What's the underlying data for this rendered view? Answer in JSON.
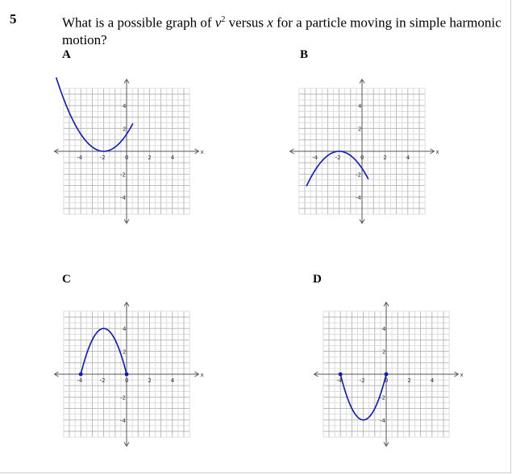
{
  "question": {
    "number": "5",
    "text_before": "What is a possible graph of ",
    "var_v": "v",
    "exponent": "2",
    "text_middle": " versus ",
    "var_x": "x",
    "text_after": " for a particle moving in simple harmonic motion?"
  },
  "options": [
    {
      "label": "A",
      "shape": "upward parabola",
      "vertex": [
        -2,
        0
      ],
      "passes_through": [
        0,
        1.5
      ],
      "endpoints": "none"
    },
    {
      "label": "B",
      "shape": "downward parabola",
      "vertex": [
        -2,
        0
      ],
      "passes_through": [
        0,
        -1.5
      ],
      "endpoints": "none"
    },
    {
      "label": "C",
      "shape": "downward parabola",
      "vertex": [
        -2,
        4
      ],
      "x_range": [
        -4,
        0
      ],
      "endpoints": "dots"
    },
    {
      "label": "D",
      "shape": "upward parabola",
      "vertex": [
        -2,
        -4
      ],
      "x_range": [
        -4,
        0
      ],
      "endpoints": "dots"
    }
  ],
  "axis": {
    "x_label": "x",
    "tick_labels": [
      "-4",
      "-2",
      "0",
      "2",
      "4"
    ],
    "y_tick_labels": [
      "4",
      "2",
      "-2",
      "-4"
    ]
  },
  "colors": {
    "curve": "#0b16c8",
    "grid": "#d6d6d6"
  }
}
